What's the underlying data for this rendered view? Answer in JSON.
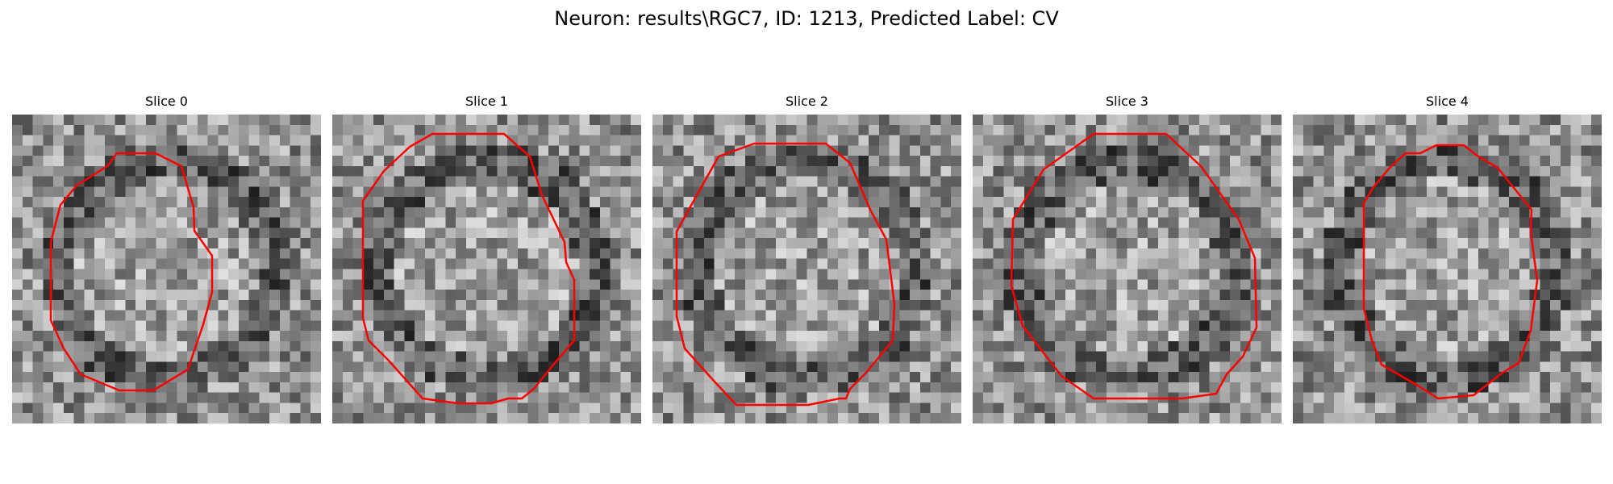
{
  "figure": {
    "title": "Neuron: results\\RGC7, ID: 1213, Predicted Label: CV"
  },
  "slices": [
    {
      "title": "Slice 0"
    },
    {
      "title": "Slice 1"
    },
    {
      "title": "Slice 2"
    },
    {
      "title": "Slice 3"
    },
    {
      "title": "Slice 4"
    }
  ],
  "colors": {
    "contour": "#ff0000"
  }
}
